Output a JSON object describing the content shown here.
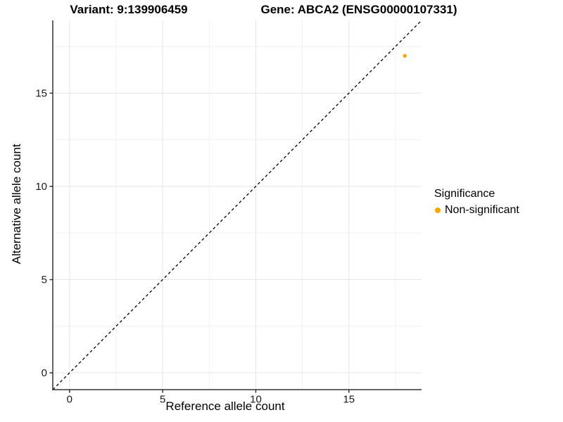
{
  "chart_data": {
    "type": "scatter",
    "title_left": "Variant: 9:139906459",
    "title_right": "Gene: ABCA2 (ENSG00000107331)",
    "xlabel": "Reference allele count",
    "ylabel": "Alternative allele count",
    "xlim": [
      -0.9,
      18.9
    ],
    "ylim": [
      -0.9,
      18.9
    ],
    "xticks": [
      0,
      5,
      10,
      15
    ],
    "yticks": [
      0,
      5,
      10,
      15
    ],
    "minor_step": 2.5,
    "grid": {
      "major_color": "#e6e6e6",
      "minor_color": "#f1f1f1"
    },
    "axis_color": "#333333",
    "text_color": "#1a1a1a",
    "identity_line": {
      "style": "dashed",
      "color": "#000000",
      "slope": 1,
      "intercept": 0
    },
    "series": [
      {
        "name": "Non-significant",
        "color": "#FFA500",
        "points": [
          {
            "x": 18,
            "y": 17
          }
        ]
      }
    ],
    "legend": {
      "title": "Significance",
      "position": "right",
      "entries": [
        {
          "label": "Non-significant",
          "color": "#FFA500",
          "marker": "circle"
        }
      ]
    }
  }
}
